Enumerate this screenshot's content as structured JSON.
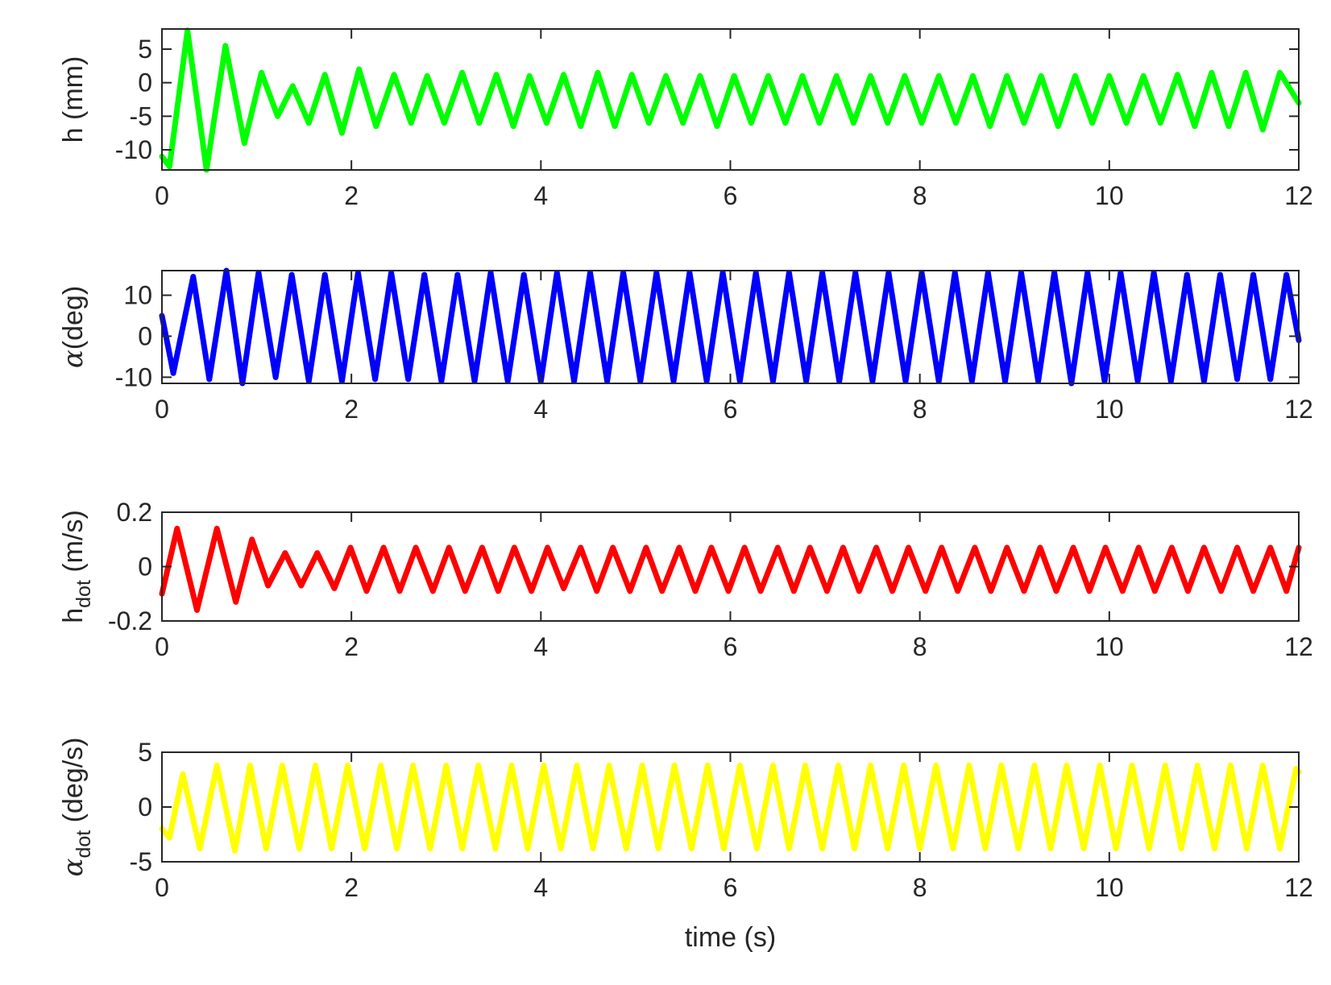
{
  "chart_data": [
    {
      "type": "line",
      "ylabel": "h (mm)",
      "xlim": [
        0,
        12
      ],
      "ylim": [
        -13,
        8
      ],
      "xticks": [
        "0",
        "2",
        "4",
        "6",
        "8",
        "10",
        "12"
      ],
      "yticks": [
        {
          "value": 5,
          "label": "5"
        },
        {
          "value": 0,
          "label": "0"
        },
        {
          "value": -5,
          "label": "-5"
        },
        {
          "value": -10,
          "label": "-10"
        }
      ],
      "color": "#00ff00",
      "grid": false,
      "series": [
        {
          "x": [
            0,
            0.08,
            0.27,
            0.47,
            0.67,
            0.87,
            1.05,
            1.22,
            1.38,
            1.55,
            1.72,
            1.9,
            2.08,
            2.26,
            2.45,
            2.63,
            2.8,
            2.98,
            3.17,
            3.35,
            3.53,
            3.71,
            3.88,
            4.06,
            4.24,
            4.42,
            4.6,
            4.78,
            4.96,
            5.14,
            5.32,
            5.5,
            5.68,
            5.86,
            6.04,
            6.22,
            6.4,
            6.58,
            6.76,
            6.94,
            7.12,
            7.3,
            7.48,
            7.66,
            7.84,
            8.02,
            8.2,
            8.38,
            8.56,
            8.74,
            8.92,
            9.1,
            9.28,
            9.46,
            9.64,
            9.82,
            10.0,
            10.18,
            10.36,
            10.54,
            10.72,
            10.9,
            11.08,
            11.26,
            11.44,
            11.62,
            11.8,
            12.0
          ],
          "y": [
            -11,
            -12.5,
            7.8,
            -13,
            5.5,
            -9,
            1.5,
            -5,
            -0.5,
            -6,
            1.2,
            -7.5,
            2,
            -6.5,
            1.2,
            -6,
            1,
            -6,
            1.5,
            -6,
            1.2,
            -6.5,
            1,
            -6,
            1.2,
            -6.5,
            1.5,
            -6.5,
            1.2,
            -6,
            1,
            -6,
            1,
            -6.5,
            1,
            -6,
            1,
            -6,
            1,
            -6,
            1,
            -6,
            1,
            -6,
            1,
            -6,
            1,
            -6,
            1,
            -6.5,
            1,
            -6,
            1,
            -6.5,
            1,
            -6,
            1,
            -6,
            1,
            -6,
            1.2,
            -6.5,
            1.5,
            -6.5,
            1.5,
            -7,
            1.5,
            -3
          ]
        }
      ]
    },
    {
      "type": "line",
      "ylabel": "α(deg)",
      "xlim": [
        0,
        12
      ],
      "ylim": [
        -11.5,
        16
      ],
      "xticks": [
        "0",
        "2",
        "4",
        "6",
        "8",
        "10",
        "12"
      ],
      "yticks": [
        {
          "value": 10,
          "label": "10"
        },
        {
          "value": 0,
          "label": "0"
        },
        {
          "value": -10,
          "label": "-10"
        }
      ],
      "color": "#0000ff",
      "grid": false,
      "series": [
        {
          "x": [
            0,
            0.12,
            0.33,
            0.5,
            0.68,
            0.85,
            1.02,
            1.2,
            1.37,
            1.55,
            1.72,
            1.9,
            2.07,
            2.25,
            2.42,
            2.6,
            2.77,
            2.95,
            3.12,
            3.3,
            3.47,
            3.65,
            3.82,
            4.0,
            4.17,
            4.35,
            4.52,
            4.7,
            4.87,
            5.05,
            5.22,
            5.4,
            5.57,
            5.75,
            5.92,
            6.1,
            6.27,
            6.45,
            6.62,
            6.8,
            6.97,
            7.15,
            7.32,
            7.5,
            7.67,
            7.85,
            8.02,
            8.2,
            8.37,
            8.55,
            8.72,
            8.9,
            9.07,
            9.25,
            9.42,
            9.6,
            9.77,
            9.95,
            10.12,
            10.3,
            10.47,
            10.65,
            10.82,
            11.0,
            11.17,
            11.35,
            11.52,
            11.7,
            11.87,
            12.0
          ],
          "y": [
            5,
            -9,
            14.5,
            -10.5,
            16,
            -11.5,
            15.5,
            -10,
            15,
            -11,
            15,
            -11,
            15.5,
            -10.5,
            15.5,
            -10.5,
            15,
            -11,
            15,
            -11,
            15.5,
            -11,
            15,
            -11,
            15.5,
            -11,
            15.5,
            -11,
            15.5,
            -11,
            15.5,
            -11,
            15.5,
            -11,
            15.5,
            -11,
            15.5,
            -11,
            15.5,
            -11,
            15.5,
            -11,
            15.5,
            -11,
            15.5,
            -11,
            15.5,
            -11,
            15.5,
            -11,
            15.5,
            -11,
            15.5,
            -11,
            15.5,
            -11.5,
            15.5,
            -11,
            15.5,
            -11,
            15.5,
            -11,
            15,
            -11,
            15,
            -10.5,
            15,
            -10.5,
            15,
            -1
          ]
        }
      ]
    },
    {
      "type": "line",
      "ylabel": "h",
      "ylabel_sub": "dot",
      "ylabel_suffix": " (m/s)",
      "xlim": [
        0,
        12
      ],
      "ylim": [
        -0.2,
        0.2
      ],
      "xticks": [
        "0",
        "2",
        "4",
        "6",
        "8",
        "10",
        "12"
      ],
      "yticks": [
        {
          "value": 0.2,
          "label": "0.2"
        },
        {
          "value": 0,
          "label": "0"
        },
        {
          "value": -0.2,
          "label": "-0.2"
        }
      ],
      "color": "#ff0000",
      "grid": false,
      "series": [
        {
          "x": [
            0,
            0.16,
            0.37,
            0.58,
            0.78,
            0.95,
            1.12,
            1.3,
            1.47,
            1.64,
            1.82,
            1.99,
            2.16,
            2.34,
            2.51,
            2.68,
            2.86,
            3.03,
            3.2,
            3.38,
            3.55,
            3.72,
            3.9,
            4.07,
            4.24,
            4.42,
            4.59,
            4.76,
            4.94,
            5.11,
            5.28,
            5.46,
            5.63,
            5.8,
            5.98,
            6.15,
            6.32,
            6.5,
            6.67,
            6.84,
            7.02,
            7.19,
            7.36,
            7.54,
            7.71,
            7.88,
            8.06,
            8.23,
            8.4,
            8.58,
            8.75,
            8.92,
            9.1,
            9.27,
            9.44,
            9.62,
            9.79,
            9.96,
            10.14,
            10.31,
            10.48,
            10.66,
            10.83,
            11.0,
            11.18,
            11.35,
            11.52,
            11.7,
            11.87,
            12.0
          ],
          "y": [
            -0.1,
            0.14,
            -0.16,
            0.14,
            -0.13,
            0.1,
            -0.07,
            0.05,
            -0.07,
            0.05,
            -0.08,
            0.07,
            -0.09,
            0.07,
            -0.09,
            0.07,
            -0.09,
            0.07,
            -0.09,
            0.07,
            -0.09,
            0.07,
            -0.09,
            0.07,
            -0.08,
            0.07,
            -0.09,
            0.07,
            -0.09,
            0.07,
            -0.09,
            0.07,
            -0.09,
            0.07,
            -0.09,
            0.07,
            -0.09,
            0.07,
            -0.09,
            0.07,
            -0.09,
            0.07,
            -0.09,
            0.07,
            -0.09,
            0.07,
            -0.09,
            0.07,
            -0.09,
            0.07,
            -0.09,
            0.07,
            -0.09,
            0.07,
            -0.09,
            0.07,
            -0.09,
            0.07,
            -0.09,
            0.07,
            -0.09,
            0.07,
            -0.09,
            0.07,
            -0.09,
            0.07,
            -0.09,
            0.07,
            -0.09,
            0.07
          ]
        }
      ]
    },
    {
      "type": "line",
      "ylabel": "α",
      "ylabel_sub": "dot",
      "ylabel_suffix": " (deg/s)",
      "xlabel": "time (s)",
      "xlim": [
        0,
        12
      ],
      "ylim": [
        -5,
        5
      ],
      "xticks": [
        "0",
        "2",
        "4",
        "6",
        "8",
        "10",
        "12"
      ],
      "yticks": [
        {
          "value": 5,
          "label": "5"
        },
        {
          "value": 0,
          "label": "0"
        },
        {
          "value": -5,
          "label": "-5"
        }
      ],
      "color": "#ffff00",
      "grid": false,
      "series": [
        {
          "x": [
            0,
            0.08,
            0.22,
            0.4,
            0.58,
            0.77,
            0.93,
            1.1,
            1.27,
            1.45,
            1.62,
            1.79,
            1.96,
            2.14,
            2.31,
            2.48,
            2.65,
            2.83,
            3.0,
            3.17,
            3.34,
            3.52,
            3.69,
            3.86,
            4.03,
            4.21,
            4.38,
            4.55,
            4.72,
            4.9,
            5.07,
            5.24,
            5.41,
            5.59,
            5.76,
            5.93,
            6.1,
            6.28,
            6.45,
            6.62,
            6.79,
            6.97,
            7.14,
            7.31,
            7.48,
            7.66,
            7.83,
            8.0,
            8.17,
            8.35,
            8.52,
            8.69,
            8.86,
            9.04,
            9.21,
            9.38,
            9.55,
            9.73,
            9.9,
            10.07,
            10.24,
            10.42,
            10.59,
            10.76,
            10.93,
            11.11,
            11.28,
            11.45,
            11.62,
            11.8,
            11.97,
            12.0
          ],
          "y": [
            -2,
            -2.8,
            3,
            -3.8,
            3.8,
            -4,
            3.8,
            -3.8,
            3.8,
            -3.8,
            3.8,
            -3.8,
            3.8,
            -3.8,
            3.8,
            -3.8,
            3.8,
            -3.8,
            3.8,
            -3.8,
            3.8,
            -3.8,
            3.8,
            -3.8,
            3.8,
            -3.8,
            3.8,
            -3.8,
            3.8,
            -3.8,
            3.8,
            -3.8,
            3.8,
            -3.8,
            3.8,
            -3.8,
            3.8,
            -3.8,
            3.8,
            -3.8,
            3.8,
            -3.8,
            3.8,
            -3.8,
            3.8,
            -3.8,
            3.8,
            -3.8,
            3.8,
            -3.8,
            3.8,
            -3.8,
            3.8,
            -3.8,
            3.8,
            -3.8,
            3.8,
            -3.8,
            3.8,
            -3.8,
            3.8,
            -3.8,
            3.8,
            -3.8,
            3.8,
            -3.8,
            3.8,
            -3.8,
            3.8,
            -3.8,
            3.5,
            3.2
          ]
        }
      ]
    }
  ]
}
